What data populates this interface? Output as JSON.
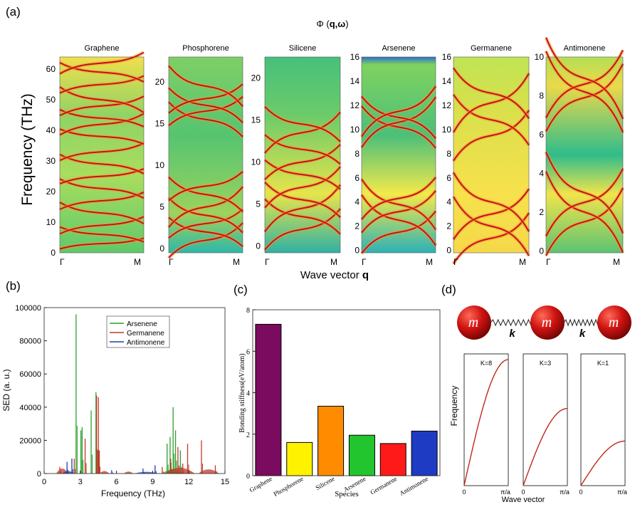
{
  "panel_labels": {
    "a": "(a)",
    "b": "(b)",
    "c": "(c)",
    "d": "(d)"
  },
  "chart_data": [
    {
      "type": "heatmap",
      "title": "Φ (q,ω)",
      "title_prefix": "Φ (",
      "title_bold": "q,ω",
      "title_suffix": ")",
      "ylabel": "Frequency  (THz)",
      "xlabel_prefix": "Wave vector ",
      "xlabel_bold": "q",
      "x_ticks": [
        "Γ",
        "M"
      ],
      "panels": [
        {
          "name": "Graphene",
          "ylim": [
            0,
            64
          ],
          "yticks": [
            0,
            10,
            20,
            30,
            40,
            50,
            60
          ],
          "bands": [
            [
              3,
              5
            ],
            [
              6,
              7
            ],
            [
              9,
              8
            ],
            [
              13,
              10
            ],
            [
              17,
              8
            ],
            [
              21,
              9
            ],
            [
              25,
              7
            ],
            [
              29,
              9
            ],
            [
              33,
              8
            ],
            [
              38,
              7
            ],
            [
              42,
              10
            ],
            [
              44,
              8
            ],
            [
              48,
              9
            ],
            [
              50,
              12
            ],
            [
              55,
              8
            ],
            [
              59,
              9
            ],
            [
              62,
              10
            ]
          ]
        },
        {
          "name": "Phosphorene",
          "ylim": [
            -0.5,
            23
          ],
          "yticks": [
            0,
            5,
            10,
            15,
            20
          ],
          "bands": [
            [
              1,
              6
            ],
            [
              2,
              5
            ],
            [
              3,
              5
            ],
            [
              4,
              6
            ],
            [
              5,
              7
            ],
            [
              6.5,
              6
            ],
            [
              7.5,
              5
            ],
            [
              15.5,
              6
            ],
            [
              16.5,
              5
            ],
            [
              17.2,
              6
            ],
            [
              18,
              5
            ],
            [
              19.5,
              7
            ]
          ]
        },
        {
          "name": "Silicene",
          "ylim": [
            -0.8,
            22.5
          ],
          "yticks": [
            0,
            5,
            10,
            15,
            20
          ],
          "bands": [
            [
              2,
              7
            ],
            [
              3.5,
              6
            ],
            [
              4.5,
              8
            ],
            [
              5.5,
              6
            ],
            [
              7,
              7
            ],
            [
              8.5,
              5
            ],
            [
              10,
              6
            ],
            [
              11.5,
              5
            ],
            [
              13.5,
              7
            ],
            [
              14.5,
              6
            ]
          ]
        },
        {
          "name": "Arsenene",
          "ylim": [
            -0.2,
            16
          ],
          "yticks": [
            0,
            2,
            4,
            6,
            8,
            10,
            12,
            14,
            16
          ],
          "bands": [
            [
              1.5,
              5
            ],
            [
              2.5,
              6
            ],
            [
              3.2,
              5
            ],
            [
              3.8,
              6
            ],
            [
              4.3,
              5
            ],
            [
              10.2,
              5
            ],
            [
              10.6,
              6
            ],
            [
              11,
              5
            ],
            [
              11.5,
              6
            ]
          ]
        },
        {
          "name": "Germanene",
          "ylim": [
            -0.2,
            16
          ],
          "yticks": [
            0,
            2,
            4,
            6,
            8,
            10,
            12,
            14,
            16
          ],
          "bands": [
            [
              1,
              6
            ],
            [
              2,
              7
            ],
            [
              3,
              6
            ],
            [
              4,
              7
            ],
            [
              9.5,
              6
            ],
            [
              10.8,
              6
            ],
            [
              12.2,
              7
            ],
            [
              13,
              6
            ]
          ]
        },
        {
          "name": "Antimonene",
          "ylim": [
            -0.1,
            10
          ],
          "yticks": [
            0,
            2,
            4,
            6,
            8,
            10
          ],
          "bands": [
            [
              1.5,
              5
            ],
            [
              2,
              6
            ],
            [
              2.5,
              5
            ],
            [
              3,
              6
            ],
            [
              7.9,
              5
            ],
            [
              8.2,
              6
            ],
            [
              8.6,
              5
            ],
            [
              8.9,
              6
            ]
          ]
        }
      ]
    },
    {
      "type": "line",
      "xlabel": "Frequency (THz)",
      "ylabel": "SED (a. u.)",
      "xlim": [
        0,
        15
      ],
      "ylim": [
        0,
        100000
      ],
      "xticks": [
        0,
        3,
        6,
        9,
        12,
        15
      ],
      "yticks": [
        0,
        20000,
        40000,
        60000,
        80000,
        100000
      ],
      "legend": "top-center",
      "series": [
        {
          "name": "Arsenene",
          "color": "#2ca02c",
          "peaks": [
            [
              2.65,
              96000
            ],
            [
              3.05,
              26000
            ],
            [
              3.15,
              28000
            ],
            [
              3.9,
              38000
            ],
            [
              4.3,
              49000
            ],
            [
              10.2,
              18000
            ],
            [
              10.45,
              22000
            ],
            [
              10.7,
              40000
            ],
            [
              10.9,
              26000
            ],
            [
              11.3,
              14000
            ]
          ]
        },
        {
          "name": "Germanene",
          "color": "#c0392b",
          "peaks": [
            [
              1.3,
              4000
            ],
            [
              1.9,
              3000
            ],
            [
              2.5,
              9000
            ],
            [
              3.4,
              21000
            ],
            [
              4.35,
              47000
            ],
            [
              4.5,
              46000
            ],
            [
              4.55,
              14000
            ],
            [
              9.8,
              4000
            ],
            [
              10.5,
              9000
            ],
            [
              11.1,
              16000
            ],
            [
              11.5,
              6000
            ],
            [
              11.9,
              18000
            ],
            [
              13.05,
              20000
            ],
            [
              14.2,
              5000
            ]
          ]
        },
        {
          "name": "Antimonene",
          "color": "#1f3fae",
          "peaks": [
            [
              1.9,
              7000
            ],
            [
              2.3,
              9000
            ],
            [
              5.6,
              2000
            ],
            [
              8.2,
              3000
            ],
            [
              9.2,
              5000
            ]
          ]
        }
      ]
    },
    {
      "type": "bar",
      "xlabel": "Species",
      "ylabel": "Bonding stiffness(eV/atom)",
      "ylim": [
        0,
        8
      ],
      "yticks": [
        0,
        2,
        4,
        6,
        8
      ],
      "categories": [
        "Graphene",
        "Phosphorene",
        "Silicene",
        "Arsenene",
        "Germanene",
        "Antimonene"
      ],
      "values": [
        7.3,
        1.6,
        3.35,
        1.95,
        1.55,
        2.15
      ],
      "colors": [
        "#7b0b5e",
        "#fff200",
        "#ff8c00",
        "#22c52e",
        "#ff1a1a",
        "#1e3bc4"
      ]
    },
    {
      "type": "line",
      "xlabel": "Wave vector",
      "ylabel": "Frequency",
      "x_ticks": [
        "0",
        "π/a"
      ],
      "chain": {
        "mass_label": "m",
        "spring_label": "k"
      },
      "series": [
        {
          "name": "K=8",
          "k": 8
        },
        {
          "name": "K=3",
          "k": 3
        },
        {
          "name": "K=1",
          "k": 1
        }
      ]
    }
  ]
}
